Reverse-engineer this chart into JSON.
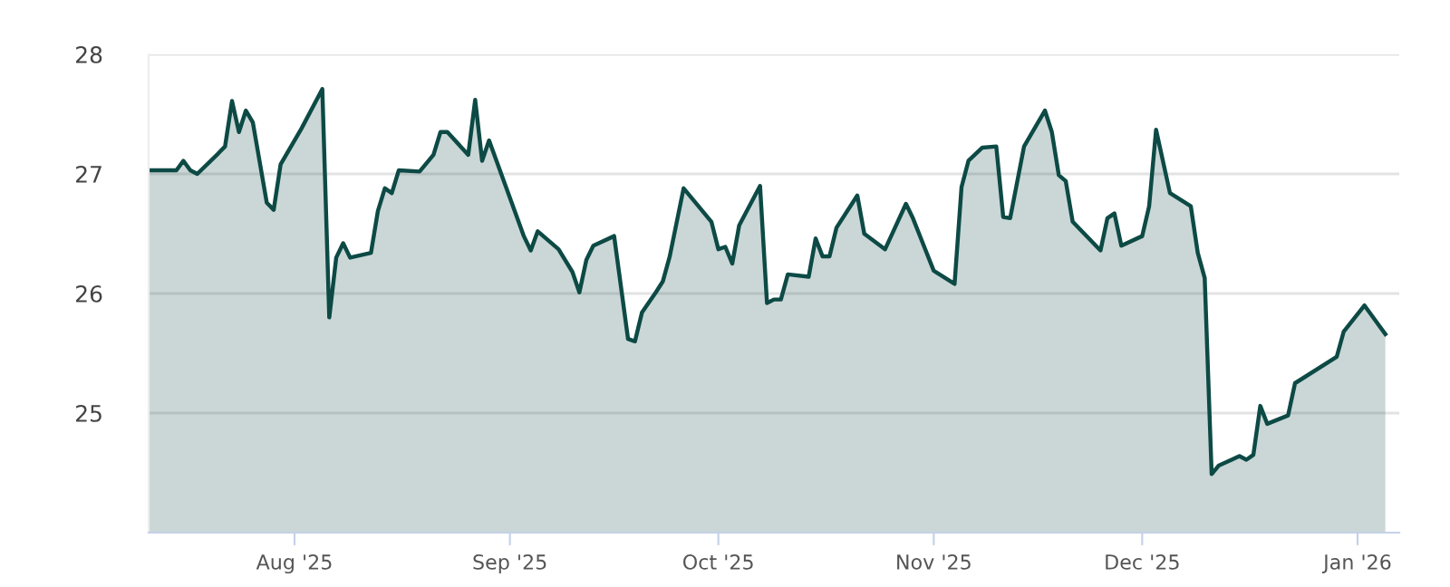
{
  "chart_data": {
    "type": "area",
    "x": [
      "2025-07-11",
      "2025-07-15",
      "2025-07-16",
      "2025-07-17",
      "2025-07-18",
      "2025-07-21",
      "2025-07-22",
      "2025-07-23",
      "2025-07-24",
      "2025-07-25",
      "2025-07-26",
      "2025-07-28",
      "2025-07-29",
      "2025-07-30",
      "2025-08-02",
      "2025-08-05",
      "2025-08-06",
      "2025-08-07",
      "2025-08-08",
      "2025-08-09",
      "2025-08-12",
      "2025-08-13",
      "2025-08-14",
      "2025-08-15",
      "2025-08-16",
      "2025-08-19",
      "2025-08-21",
      "2025-08-22",
      "2025-08-23",
      "2025-08-26",
      "2025-08-27",
      "2025-08-28",
      "2025-08-29",
      "2025-09-03",
      "2025-09-04",
      "2025-09-05",
      "2025-09-08",
      "2025-09-10",
      "2025-09-11",
      "2025-09-12",
      "2025-09-13",
      "2025-09-16",
      "2025-09-18",
      "2025-09-19",
      "2025-09-20",
      "2025-09-22",
      "2025-09-23",
      "2025-09-24",
      "2025-09-26",
      "2025-09-27",
      "2025-09-30",
      "2025-10-01",
      "2025-10-02",
      "2025-10-03",
      "2025-10-04",
      "2025-10-07",
      "2025-10-08",
      "2025-10-09",
      "2025-10-10",
      "2025-10-11",
      "2025-10-14",
      "2025-10-15",
      "2025-10-16",
      "2025-10-17",
      "2025-10-18",
      "2025-10-21",
      "2025-10-22",
      "2025-10-25",
      "2025-10-28",
      "2025-10-29",
      "2025-11-01",
      "2025-11-04",
      "2025-11-05",
      "2025-11-06",
      "2025-11-08",
      "2025-11-10",
      "2025-11-11",
      "2025-11-12",
      "2025-11-14",
      "2025-11-17",
      "2025-11-18",
      "2025-11-19",
      "2025-11-20",
      "2025-11-21",
      "2025-11-25",
      "2025-11-26",
      "2025-11-27",
      "2025-11-28",
      "2025-12-01",
      "2025-12-02",
      "2025-12-03",
      "2025-12-05",
      "2025-12-08",
      "2025-12-09",
      "2025-12-10",
      "2025-12-11",
      "2025-12-12",
      "2025-12-15",
      "2025-12-16",
      "2025-12-17",
      "2025-12-18",
      "2025-12-19",
      "2025-12-22",
      "2025-12-23",
      "2025-12-29",
      "2025-12-30",
      "2026-01-02",
      "2026-01-05"
    ],
    "series": [
      {
        "color": "#0d4a45",
        "values": [
          27.03,
          27.03,
          27.11,
          27.03,
          27.0,
          27.17,
          27.23,
          27.61,
          27.35,
          27.53,
          27.43,
          26.76,
          26.7,
          27.08,
          27.38,
          27.71,
          25.8,
          26.3,
          26.42,
          26.3,
          26.34,
          26.69,
          26.88,
          26.84,
          27.03,
          27.02,
          27.16,
          27.35,
          27.35,
          27.16,
          27.62,
          27.11,
          27.28,
          26.48,
          26.36,
          26.52,
          26.37,
          26.18,
          26.01,
          26.28,
          26.4,
          26.48,
          25.62,
          25.6,
          25.84,
          26.01,
          26.1,
          26.31,
          26.88,
          26.81,
          26.6,
          26.37,
          26.39,
          26.25,
          26.57,
          26.9,
          25.92,
          25.95,
          25.95,
          26.16,
          26.14,
          26.46,
          26.31,
          26.31,
          26.55,
          26.82,
          26.5,
          26.37,
          26.75,
          26.63,
          26.19,
          26.08,
          26.89,
          27.11,
          27.22,
          27.23,
          26.64,
          26.63,
          27.23,
          27.53,
          27.35,
          26.99,
          26.94,
          26.6,
          26.36,
          26.63,
          26.67,
          26.4,
          26.48,
          26.73,
          27.37,
          26.84,
          26.73,
          26.34,
          26.13,
          24.49,
          24.56,
          24.64,
          24.61,
          24.65,
          25.06,
          24.91,
          24.98,
          25.25,
          25.47,
          25.68,
          25.9,
          25.66
        ]
      }
    ],
    "xlim": [
      "2025-07-11",
      "2026-01-07"
    ],
    "xticks": [
      {
        "value": "2025-08-01",
        "label": "Aug '25"
      },
      {
        "value": "2025-09-01",
        "label": "Sep '25"
      },
      {
        "value": "2025-10-01",
        "label": "Oct '25"
      },
      {
        "value": "2025-11-01",
        "label": "Nov '25"
      },
      {
        "value": "2025-12-01",
        "label": "Dec '25"
      },
      {
        "value": "2026-01-01",
        "label": "Jan '26"
      }
    ],
    "ylim": [
      24,
      28
    ],
    "yticks": [
      25,
      26,
      27,
      28
    ],
    "grid": "y",
    "legend": false
  }
}
